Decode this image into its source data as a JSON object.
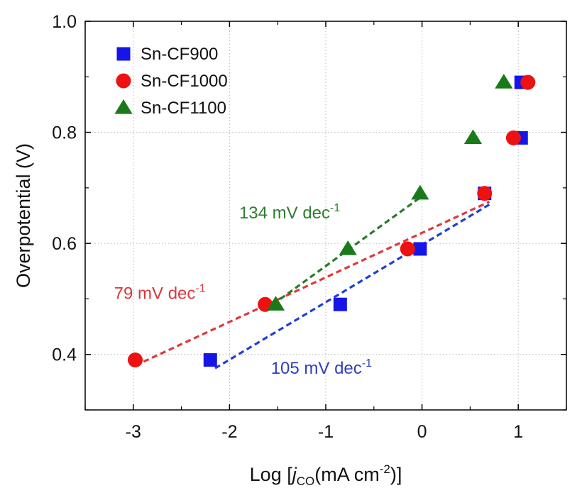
{
  "chart_data": {
    "type": "scatter",
    "xlabel": {
      "prefix": "Log [",
      "italic": "j",
      "sub": "CO",
      "middle": "(mA cm",
      "sup": "-2",
      "suffix": ")]"
    },
    "ylabel": "Overpotential (V)",
    "xlim": [
      -3.5,
      1.5
    ],
    "ylim": [
      0.3,
      1.0
    ],
    "x_ticks": [
      -3,
      -2,
      -1,
      0,
      1
    ],
    "x_tick_labels": [
      "-3",
      "-2",
      "-1",
      "0",
      "1"
    ],
    "y_ticks": [
      0.4,
      0.6,
      0.8,
      1.0
    ],
    "y_tick_labels": [
      "0.4",
      "0.6",
      "0.8",
      "1.0"
    ],
    "grid": true,
    "legend_position": "top-left",
    "series": [
      {
        "name": "Sn-CF900",
        "marker": "square",
        "color": "#1515e8",
        "x": [
          -2.2,
          -0.85,
          -0.02,
          0.65,
          1.03
        ],
        "y": [
          0.39,
          0.49,
          0.59,
          0.69,
          0.79
        ]
      },
      {
        "name": "Sn-CF1000",
        "marker": "circle",
        "color": "#ee1111",
        "x": [
          -2.98,
          -1.63,
          -0.15,
          0.65,
          0.95,
          1.1
        ],
        "y": [
          0.39,
          0.49,
          0.59,
          0.69,
          0.79,
          0.89
        ]
      },
      {
        "name": "Sn-CF1100",
        "marker": "triangle",
        "color": "#1a7a1a",
        "x": [
          -1.52,
          -0.77,
          -0.02,
          0.53,
          0.85
        ],
        "y": [
          0.49,
          0.59,
          0.69,
          0.79,
          0.89
        ]
      }
    ],
    "extra_points": [
      {
        "x": 1.03,
        "y": 0.89,
        "marker": "square",
        "color": "#1515e8"
      }
    ],
    "fit_lines": [
      {
        "color": "#1f3fd6",
        "x": [
          -2.15,
          0.7
        ],
        "y": [
          0.375,
          0.67
        ]
      },
      {
        "color": "#e0383c",
        "x": [
          -2.98,
          0.7
        ],
        "y": [
          0.38,
          0.675
        ]
      },
      {
        "color": "#2a7a2a",
        "x": [
          -1.55,
          0.0
        ],
        "y": [
          0.49,
          0.685
        ]
      }
    ],
    "annotations": [
      {
        "text": "134 mV dec",
        "sup": "-1",
        "color": "#2f7d2f",
        "x": -1.9,
        "y": 0.645
      },
      {
        "text": "79 mV dec",
        "sup": "-1",
        "color": "#d9383c",
        "x": -3.2,
        "y": 0.5
      },
      {
        "text": "105 mV dec",
        "sup": "-1",
        "color": "#2f3fc0",
        "x": -1.57,
        "y": 0.365
      }
    ]
  }
}
